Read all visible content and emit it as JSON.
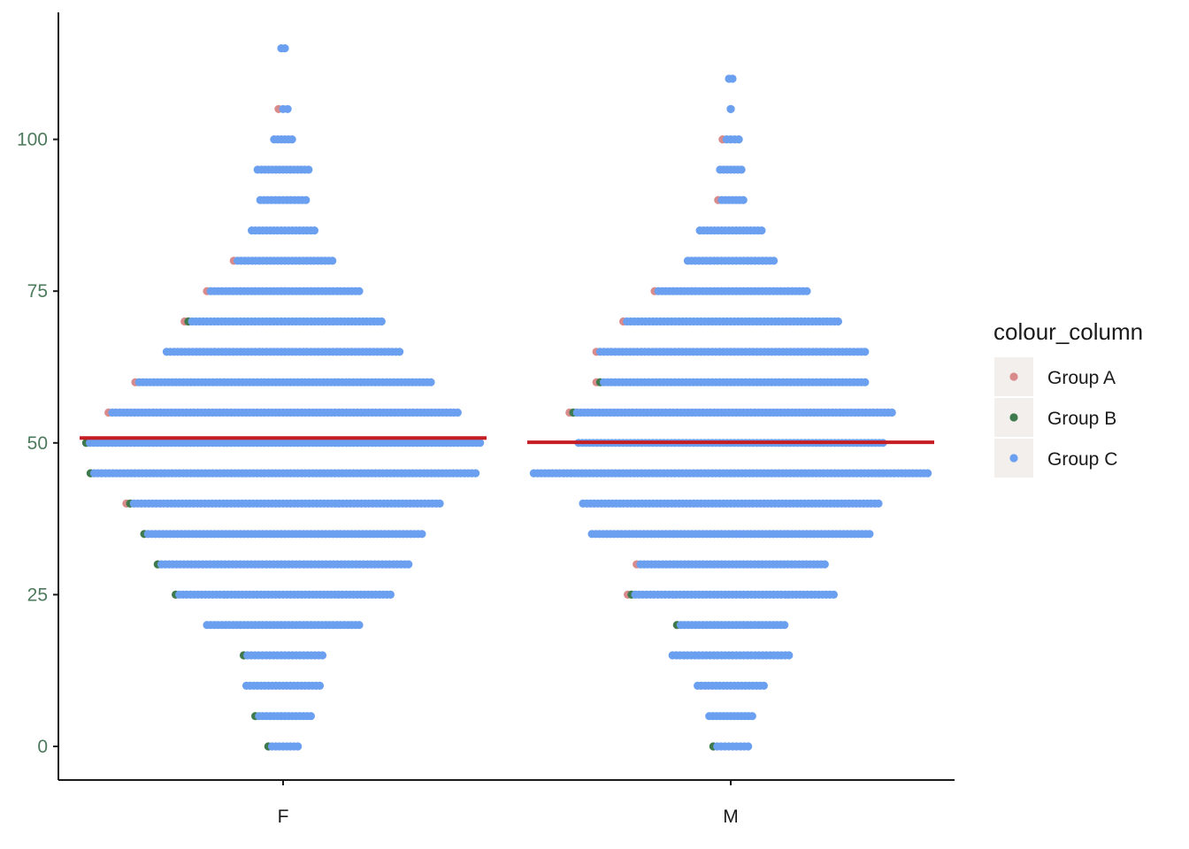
{
  "chart_data": {
    "type": "scatter",
    "title": "",
    "xlabel": "",
    "ylabel": "",
    "categories": [
      "F",
      "M"
    ],
    "yticks": [
      0,
      25,
      50,
      75,
      100
    ],
    "ylim": [
      -5.5,
      120
    ],
    "grid": false,
    "legend": {
      "title": "colour_column",
      "position": "right",
      "entries": [
        {
          "label": "Group A",
          "color": "#d98a8a"
        },
        {
          "label": "Group B",
          "color": "#3f7a4f"
        },
        {
          "label": "Group C",
          "color": "#6b9ff0"
        }
      ]
    },
    "reference_lines": [
      {
        "category": "F",
        "y": 50.8,
        "color": "#c41e24"
      },
      {
        "category": "M",
        "y": 50.1,
        "color": "#c41e24"
      }
    ],
    "dot_rows": {
      "F": [
        {
          "y": 115,
          "extent": [
            -0.004,
            0.004
          ],
          "groups": [
            "C"
          ]
        },
        {
          "y": 105,
          "extent": [
            -0.01,
            0.01
          ],
          "groups": [
            "A",
            "C"
          ]
        },
        {
          "y": 100,
          "extent": [
            -0.02,
            0.02
          ],
          "groups": [
            "C"
          ]
        },
        {
          "y": 95,
          "extent": [
            -0.057,
            0.057
          ],
          "groups": [
            "C"
          ]
        },
        {
          "y": 90,
          "extent": [
            -0.051,
            0.051
          ],
          "groups": [
            "C"
          ]
        },
        {
          "y": 85,
          "extent": [
            -0.07,
            0.07
          ],
          "groups": [
            "C"
          ]
        },
        {
          "y": 80,
          "extent": [
            -0.11,
            0.11
          ],
          "groups": [
            "A",
            "C"
          ]
        },
        {
          "y": 75,
          "extent": [
            -0.17,
            0.17
          ],
          "groups": [
            "A",
            "C"
          ]
        },
        {
          "y": 70,
          "extent": [
            -0.22,
            0.22
          ],
          "groups": [
            "A",
            "B",
            "C"
          ]
        },
        {
          "y": 65,
          "extent": [
            -0.26,
            0.26
          ],
          "groups": [
            "C"
          ]
        },
        {
          "y": 60,
          "extent": [
            -0.33,
            0.33
          ],
          "groups": [
            "A",
            "C"
          ]
        },
        {
          "y": 55,
          "extent": [
            -0.39,
            0.39
          ],
          "groups": [
            "A",
            "C"
          ]
        },
        {
          "y": 50,
          "extent": [
            -0.44,
            0.44
          ],
          "groups": [
            "B",
            "C"
          ]
        },
        {
          "y": 45,
          "extent": [
            -0.43,
            0.43
          ],
          "groups": [
            "B",
            "C"
          ]
        },
        {
          "y": 40,
          "extent": [
            -0.35,
            0.35
          ],
          "groups": [
            "A",
            "B",
            "C"
          ]
        },
        {
          "y": 35,
          "extent": [
            -0.31,
            0.31
          ],
          "groups": [
            "B",
            "C"
          ]
        },
        {
          "y": 30,
          "extent": [
            -0.28,
            0.28
          ],
          "groups": [
            "B",
            "C"
          ]
        },
        {
          "y": 25,
          "extent": [
            -0.24,
            0.24
          ],
          "groups": [
            "B",
            "C"
          ]
        },
        {
          "y": 20,
          "extent": [
            -0.17,
            0.17
          ],
          "groups": [
            "C"
          ]
        },
        {
          "y": 15,
          "extent": [
            -0.088,
            0.088
          ],
          "groups": [
            "B",
            "C"
          ]
        },
        {
          "y": 10,
          "extent": [
            -0.082,
            0.082
          ],
          "groups": [
            "C"
          ]
        },
        {
          "y": 5,
          "extent": [
            -0.062,
            0.062
          ],
          "groups": [
            "B",
            "C"
          ]
        },
        {
          "y": 0,
          "extent": [
            -0.033,
            0.033
          ],
          "groups": [
            "B",
            "C"
          ]
        }
      ],
      "M": [
        {
          "y": 110,
          "extent": [
            -0.004,
            0.004
          ],
          "groups": [
            "C"
          ]
        },
        {
          "y": 105,
          "extent": [
            0,
            0
          ],
          "groups": [
            "C"
          ]
        },
        {
          "y": 100,
          "extent": [
            -0.018,
            0.018
          ],
          "groups": [
            "A",
            "C"
          ]
        },
        {
          "y": 95,
          "extent": [
            -0.024,
            0.024
          ],
          "groups": [
            "C"
          ]
        },
        {
          "y": 90,
          "extent": [
            -0.028,
            0.028
          ],
          "groups": [
            "A",
            "C"
          ]
        },
        {
          "y": 85,
          "extent": [
            -0.069,
            0.069
          ],
          "groups": [
            "C"
          ]
        },
        {
          "y": 80,
          "extent": [
            -0.096,
            0.096
          ],
          "groups": [
            "C"
          ]
        },
        {
          "y": 75,
          "extent": [
            -0.17,
            0.17
          ],
          "groups": [
            "A",
            "C"
          ]
        },
        {
          "y": 70,
          "extent": [
            -0.24,
            0.24
          ],
          "groups": [
            "A",
            "C"
          ]
        },
        {
          "y": 65,
          "extent": [
            -0.3,
            0.3
          ],
          "groups": [
            "A",
            "C"
          ]
        },
        {
          "y": 60,
          "extent": [
            -0.3,
            0.3
          ],
          "groups": [
            "A",
            "B",
            "C"
          ]
        },
        {
          "y": 55,
          "extent": [
            -0.36,
            0.36
          ],
          "groups": [
            "A",
            "B",
            "C"
          ]
        },
        {
          "y": 50,
          "extent": [
            -0.34,
            0.34
          ],
          "groups": [
            "C"
          ]
        },
        {
          "y": 45,
          "extent": [
            -0.44,
            0.44
          ],
          "groups": [
            "C"
          ]
        },
        {
          "y": 40,
          "extent": [
            -0.33,
            0.33
          ],
          "groups": [
            "C"
          ]
        },
        {
          "y": 35,
          "extent": [
            -0.31,
            0.31
          ],
          "groups": [
            "C"
          ]
        },
        {
          "y": 30,
          "extent": [
            -0.21,
            0.21
          ],
          "groups": [
            "A",
            "C"
          ]
        },
        {
          "y": 25,
          "extent": [
            -0.23,
            0.23
          ],
          "groups": [
            "A",
            "B",
            "C"
          ]
        },
        {
          "y": 20,
          "extent": [
            -0.12,
            0.12
          ],
          "groups": [
            "B",
            "C"
          ]
        },
        {
          "y": 15,
          "extent": [
            -0.13,
            0.13
          ],
          "groups": [
            "C"
          ]
        },
        {
          "y": 10,
          "extent": [
            -0.074,
            0.074
          ],
          "groups": [
            "C"
          ]
        },
        {
          "y": 5,
          "extent": [
            -0.048,
            0.048
          ],
          "groups": [
            "C"
          ]
        },
        {
          "y": 0,
          "extent": [
            -0.039,
            0.039
          ],
          "groups": [
            "B",
            "C"
          ]
        }
      ]
    }
  }
}
